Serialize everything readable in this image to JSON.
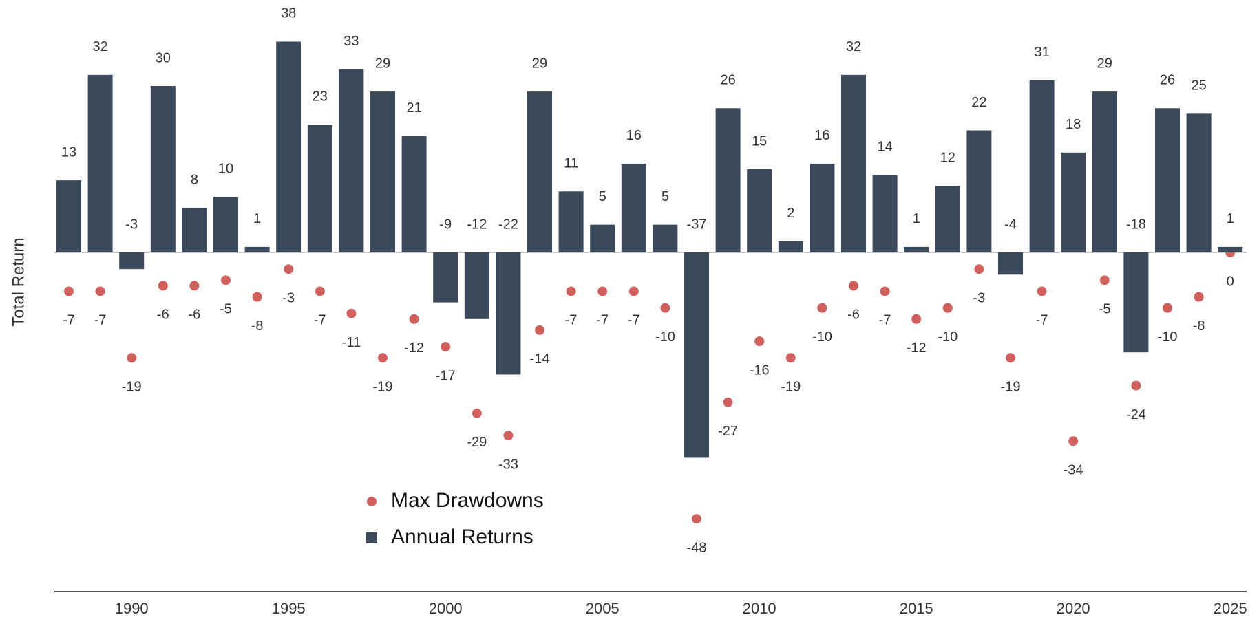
{
  "chart_data": {
    "type": "bar",
    "ylabel": "Total Return",
    "categories": [
      null,
      null,
      "1990",
      null,
      null,
      null,
      null,
      "1995",
      null,
      null,
      null,
      null,
      "2000",
      null,
      null,
      null,
      null,
      "2005",
      null,
      null,
      null,
      null,
      "2010",
      null,
      null,
      null,
      null,
      "2015",
      null,
      null,
      null,
      null,
      "2020",
      null,
      null,
      null,
      null,
      "2025"
    ],
    "series": [
      {
        "name": "Max Drawdowns",
        "type": "scatter",
        "color": "#d0605e",
        "values": [
          -7,
          -7,
          -19,
          -6,
          -6,
          -5,
          -8,
          -3,
          -7,
          -11,
          -19,
          -12,
          -17,
          -29,
          -33,
          -14,
          -7,
          -7,
          -7,
          -10,
          -48,
          -27,
          -16,
          -19,
          -10,
          -6,
          -7,
          -12,
          -10,
          -3,
          -19,
          -7,
          -34,
          -5,
          -24,
          -10,
          -8,
          0
        ]
      },
      {
        "name": "Annual Returns",
        "type": "bar",
        "color": "#3b4a5a",
        "values": [
          13,
          32,
          -3,
          30,
          8,
          10,
          1,
          38,
          23,
          33,
          29,
          21,
          -9,
          -12,
          -22,
          29,
          11,
          5,
          16,
          5,
          -37,
          26,
          15,
          2,
          16,
          32,
          14,
          1,
          12,
          22,
          -4,
          31,
          18,
          29,
          -18,
          26,
          25,
          1
        ]
      }
    ],
    "ylim": [
      -60,
      45
    ]
  }
}
